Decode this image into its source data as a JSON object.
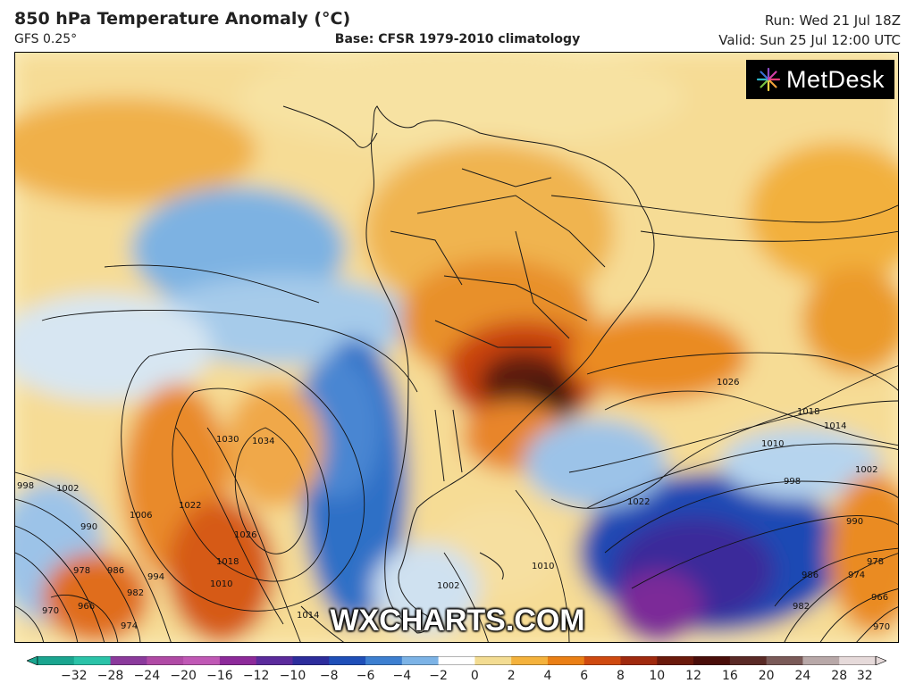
{
  "header": {
    "title": "850 hPa Temperature Anomaly (°C)",
    "model": "GFS 0.25°",
    "base": "Base: CFSR 1979-2010 climatology",
    "run": "Run: Wed 21 Jul 18Z",
    "valid": "Valid: Sun 25 Jul 12:00 UTC"
  },
  "logo": {
    "text": "MetDesk",
    "icon": "starburst-logo-icon"
  },
  "watermark": "WXCHARTS.COM",
  "isobars": [
    "1026",
    "1018",
    "1014",
    "1010",
    "1002",
    "998",
    "990",
    "978",
    "966",
    "974",
    "970",
    "986",
    "982",
    "1022",
    "1010",
    "1002",
    "1030",
    "1034",
    "1022",
    "1026",
    "1018",
    "1010",
    "998",
    "1002",
    "1006",
    "990",
    "978",
    "986",
    "982",
    "994",
    "970",
    "966",
    "974",
    "1014"
  ],
  "colorbar": {
    "ticks": [
      "−32",
      "−28",
      "−24",
      "−20",
      "−16",
      "−12",
      "−10",
      "−8",
      "−6",
      "−4",
      "−2",
      "0",
      "2",
      "4",
      "6",
      "8",
      "10",
      "12",
      "16",
      "20",
      "24",
      "28",
      "32"
    ],
    "colors": [
      "#1aa58f",
      "#2bc3a8",
      "#8b3a9c",
      "#b04aa5",
      "#c058b5",
      "#8d2a9a",
      "#5b2b9c",
      "#2d2d9c",
      "#1f4fb8",
      "#3d7fd0",
      "#7cb3e6",
      "#ffffff",
      "#f3dc92",
      "#f4b23c",
      "#ea7f15",
      "#cf4a10",
      "#a02a0e",
      "#6b1a0c",
      "#4a0e0a",
      "#5a2a26",
      "#7a5a58",
      "#b8a8a8",
      "#e6dada"
    ]
  }
}
